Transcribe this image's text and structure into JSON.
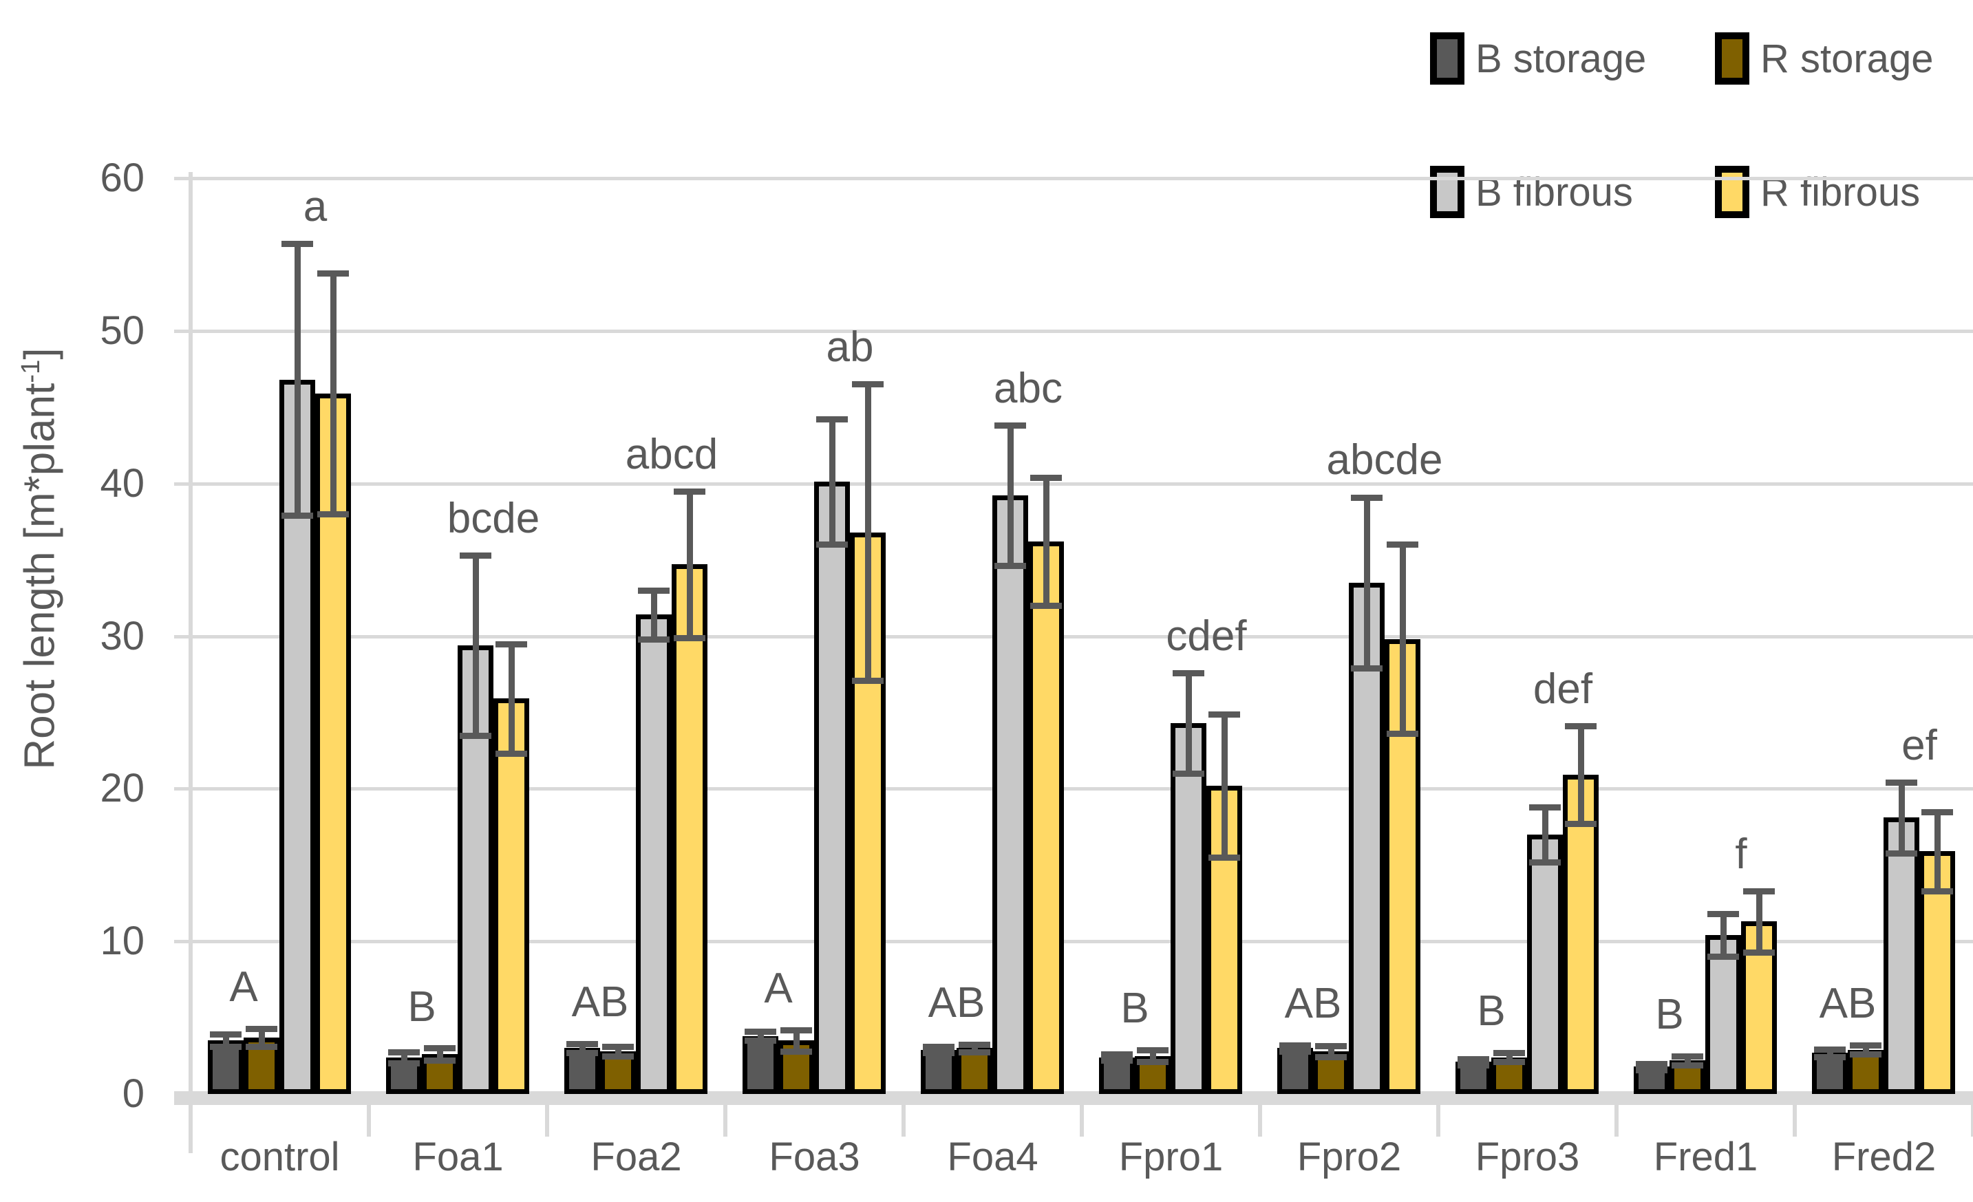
{
  "axes": {
    "y_title_main": "Root length [m*plant",
    "y_title_sup": "-1",
    "y_title_close": "]",
    "y_ticks": [
      0,
      10,
      20,
      30,
      40,
      50,
      60
    ],
    "y_max": 60
  },
  "legend": {
    "items": [
      {
        "label": "B storage",
        "color": "#595959"
      },
      {
        "label": "R storage",
        "color": "#7F6000"
      },
      {
        "label": "B fibrous",
        "color": "#C8C8C8"
      },
      {
        "label": "R fibrous",
        "color": "#FFD966"
      }
    ]
  },
  "style": {
    "grid_color": "#D9D9D9",
    "axis_color": "#D9D9D9",
    "error_color": "#595959",
    "text_color": "#595959",
    "bar_border_color": "#000000",
    "background": "#FFFFFF"
  },
  "chart_data": {
    "type": "bar",
    "title": "",
    "xlabel": "",
    "ylabel": "Root length [m*plant⁻¹]",
    "ylim": [
      0,
      60
    ],
    "grid": true,
    "legend_position": "top-right",
    "categories": [
      "control",
      "Foa1",
      "Foa2",
      "Foa3",
      "Foa4",
      "Fpro1",
      "Fpro2",
      "Fpro3",
      "Fred1",
      "Fred2"
    ],
    "series": [
      {
        "name": "B storage",
        "color": "#595959",
        "values": [
          3.5,
          2.4,
          3.0,
          3.8,
          2.9,
          2.4,
          3.0,
          2.1,
          1.8,
          2.7
        ],
        "errors": [
          0.4,
          0.35,
          0.3,
          0.3,
          0.2,
          0.2,
          0.2,
          0.2,
          0.2,
          0.25
        ]
      },
      {
        "name": "R storage",
        "color": "#7F6000",
        "values": [
          3.7,
          2.6,
          2.8,
          3.5,
          3.0,
          2.5,
          2.8,
          2.4,
          2.2,
          2.9
        ],
        "errors": [
          0.6,
          0.4,
          0.3,
          0.7,
          0.25,
          0.4,
          0.35,
          0.3,
          0.3,
          0.3
        ]
      },
      {
        "name": "B fibrous",
        "color": "#C8C8C8",
        "values": [
          46.8,
          29.4,
          31.4,
          40.1,
          39.2,
          24.3,
          33.5,
          17.0,
          10.4,
          18.1
        ],
        "errors": [
          8.9,
          5.9,
          1.6,
          4.1,
          4.6,
          3.3,
          5.6,
          1.8,
          1.4,
          2.3
        ]
      },
      {
        "name": "R fibrous",
        "color": "#FFD966",
        "values": [
          45.9,
          25.9,
          34.7,
          36.8,
          36.2,
          20.2,
          29.8,
          20.9,
          11.3,
          15.9
        ],
        "errors": [
          7.9,
          3.6,
          4.8,
          9.7,
          4.2,
          4.7,
          6.2,
          3.2,
          2.0,
          2.6
        ]
      }
    ],
    "significance_letters": {
      "storage": [
        "A",
        "B",
        "AB",
        "A",
        "AB",
        "B",
        "AB",
        "B",
        "B",
        "AB"
      ],
      "fibrous": [
        "a",
        "bcde",
        "abcd",
        "ab",
        "abc",
        "cdef",
        "abcde",
        "def",
        "f",
        "ef"
      ]
    }
  }
}
